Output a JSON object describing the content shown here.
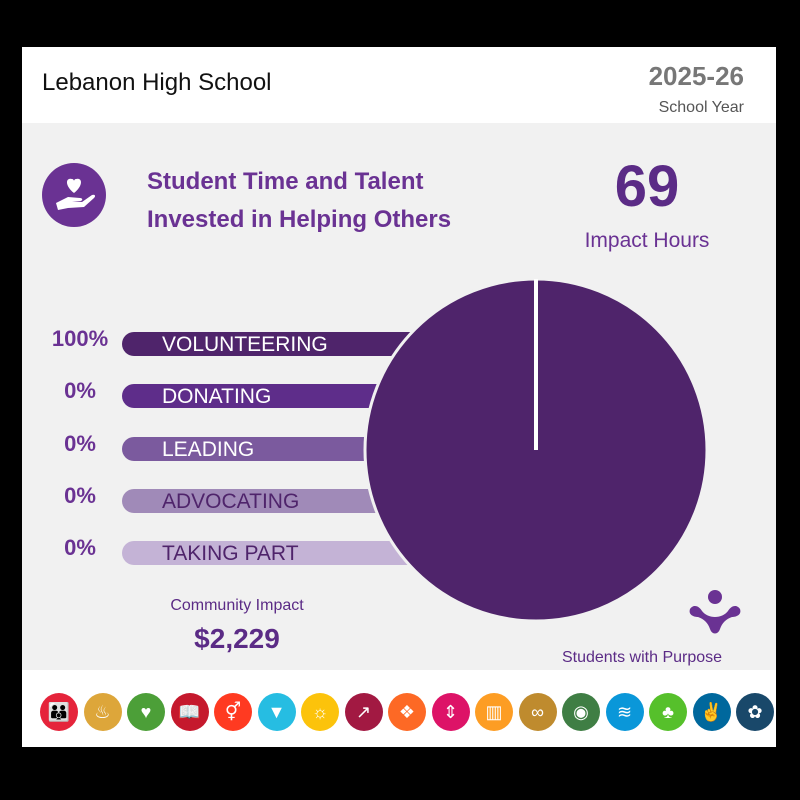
{
  "header": {
    "school": "Lebanon High School",
    "year": "2025-26",
    "year_label": "School Year"
  },
  "section": {
    "title_line1": "Student Time and Talent",
    "title_line2": "Invested in Helping Others",
    "icon": "hand-heart-icon",
    "hours": "69",
    "hours_label": "Impact Hours"
  },
  "chart_data": {
    "type": "pie",
    "categories": [
      "VOLUNTEERING",
      "DONATING",
      "LEADING",
      "ADVOCATING",
      "TAKING PART"
    ],
    "values": [
      100,
      0,
      0,
      0,
      0
    ],
    "labels": [
      "100%",
      "0%",
      "0%",
      "0%",
      "0%"
    ],
    "colors": [
      "#4f246b",
      "#5e2d8a",
      "#7b5a9e",
      "#a08ab8",
      "#c4b3d6"
    ],
    "label_colors": [
      "#ffffff",
      "#ffffff",
      "#ffffff",
      "#4f246b",
      "#4f246b"
    ]
  },
  "impact": {
    "label": "Community Impact",
    "value": "$2,229"
  },
  "brand": {
    "name": "Students with Purpose",
    "icon": "students-with-purpose-logo"
  },
  "sdgs": [
    {
      "icon": "no-poverty-icon",
      "color": "#e5243b",
      "glyph": "👪"
    },
    {
      "icon": "zero-hunger-icon",
      "color": "#dda63a",
      "glyph": "♨"
    },
    {
      "icon": "good-health-icon",
      "color": "#4c9f38",
      "glyph": "♥"
    },
    {
      "icon": "quality-education-icon",
      "color": "#c5192d",
      "glyph": "📖"
    },
    {
      "icon": "gender-equality-icon",
      "color": "#ff3a21",
      "glyph": "⚥"
    },
    {
      "icon": "clean-water-icon",
      "color": "#26bde2",
      "glyph": "▼"
    },
    {
      "icon": "clean-energy-icon",
      "color": "#fcc30b",
      "glyph": "☼"
    },
    {
      "icon": "decent-work-icon",
      "color": "#a21942",
      "glyph": "↗"
    },
    {
      "icon": "industry-innovation-icon",
      "color": "#fd6925",
      "glyph": "❖"
    },
    {
      "icon": "reduced-inequalities-icon",
      "color": "#dd1367",
      "glyph": "⇕"
    },
    {
      "icon": "sustainable-cities-icon",
      "color": "#fd9d24",
      "glyph": "▥"
    },
    {
      "icon": "responsible-consumption-icon",
      "color": "#bf8b2e",
      "glyph": "∞"
    },
    {
      "icon": "climate-action-icon",
      "color": "#3f7e44",
      "glyph": "◉"
    },
    {
      "icon": "life-below-water-icon",
      "color": "#0a97d9",
      "glyph": "≋"
    },
    {
      "icon": "life-on-land-icon",
      "color": "#56c02b",
      "glyph": "♣"
    },
    {
      "icon": "peace-justice-icon",
      "color": "#00689d",
      "glyph": "✌"
    },
    {
      "icon": "partnerships-icon",
      "color": "#19486a",
      "glyph": "✿"
    }
  ]
}
